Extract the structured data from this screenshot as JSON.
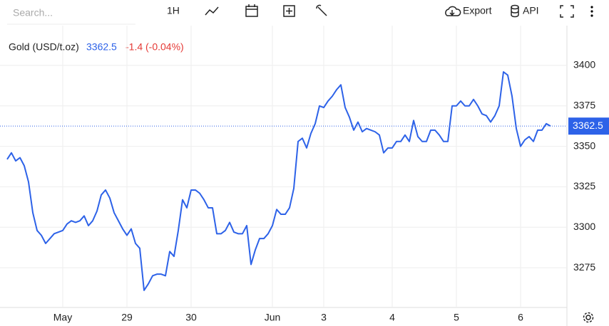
{
  "toolbar": {
    "search_placeholder": "Search...",
    "interval": "1H",
    "export": "Export",
    "api": "API"
  },
  "chart_data": {
    "type": "line",
    "title": "Gold (USD/t.oz)",
    "last_price": 3362.5,
    "change": "-1.4 (-0.04%)",
    "color": "#2d62e8",
    "change_color": "#e53935",
    "grid": true,
    "ylim": [
      3250.4,
      3424.6
    ],
    "yticks": [
      3275,
      3300,
      3325,
      3350,
      3375,
      3400
    ],
    "categories": [
      null,
      null,
      null,
      null,
      null,
      null,
      null,
      null,
      null,
      null,
      null,
      null,
      null,
      "May",
      null,
      null,
      null,
      null,
      null,
      null,
      null,
      null,
      null,
      null,
      null,
      null,
      null,
      null,
      "29",
      null,
      null,
      null,
      null,
      null,
      null,
      null,
      null,
      null,
      null,
      null,
      null,
      null,
      null,
      "30",
      null,
      null,
      null,
      null,
      null,
      null,
      null,
      null,
      null,
      null,
      null,
      null,
      null,
      null,
      null,
      null,
      null,
      null,
      "Jun",
      null,
      null,
      null,
      null,
      null,
      null,
      null,
      null,
      null,
      null,
      null,
      "3",
      null,
      null,
      null,
      null,
      null,
      null,
      null,
      null,
      null,
      null,
      null,
      null,
      null,
      null,
      null,
      "4",
      null,
      null,
      null,
      null,
      null,
      null,
      null,
      null,
      null,
      null,
      null,
      null,
      null,
      null,
      "5",
      null,
      null,
      null,
      null,
      null,
      null,
      null,
      null,
      null,
      null,
      null,
      null,
      null,
      null,
      "6",
      null,
      null,
      null,
      null,
      null,
      null,
      null
    ],
    "values": [
      3342,
      3346,
      3341,
      3343,
      3338,
      3328,
      3309,
      3298,
      3295,
      3290,
      3293,
      3296,
      3297,
      3298,
      3302,
      3304,
      3303,
      3304,
      3307,
      3301,
      3304,
      3310,
      3320,
      3323,
      3318,
      3309,
      3304,
      3299,
      3295,
      3299,
      3290,
      3287,
      3261,
      3265,
      3270,
      3271,
      3271,
      3270,
      3285,
      3282,
      3298,
      3317,
      3312,
      3323,
      3323,
      3321,
      3317,
      3312,
      3312,
      3296,
      3296,
      3298,
      3303,
      3297,
      3296,
      3296,
      3301,
      3277,
      3286,
      3293,
      3293,
      3296,
      3301,
      3311,
      3308,
      3308,
      3312,
      3324,
      3353,
      3355,
      3349,
      3358,
      3364,
      3375,
      3374,
      3378,
      3381,
      3385,
      3388,
      3374,
      3368,
      3360,
      3365,
      3359,
      3361,
      3360,
      3359,
      3357,
      3346,
      3349,
      3349,
      3353,
      3353,
      3357,
      3353,
      3366,
      3356,
      3353,
      3353,
      3360,
      3360,
      3357,
      3353,
      3353,
      3375,
      3375,
      3378,
      3375,
      3375,
      3379,
      3375,
      3370,
      3369,
      3365,
      3369,
      3375,
      3396,
      3394,
      3381,
      3361,
      3350,
      3354,
      3356,
      3353,
      3360,
      3360,
      3364,
      3362.5
    ]
  }
}
